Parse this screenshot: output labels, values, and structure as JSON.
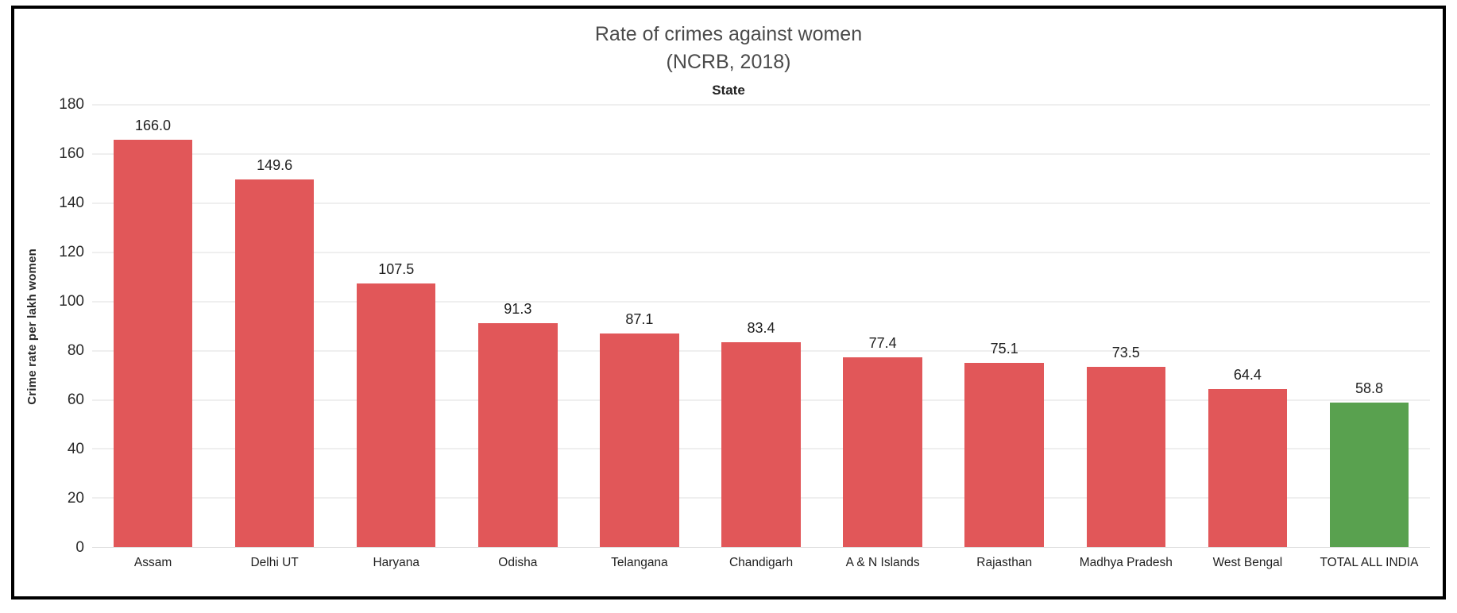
{
  "chart_data": {
    "type": "bar",
    "title": "Rate of crimes against women",
    "subtitle": "(NCRB, 2018)",
    "column_header": "State",
    "ylabel": "Crime rate per lakh women",
    "xlabel": "",
    "categories": [
      "Assam",
      "Delhi UT",
      "Haryana",
      "Odisha",
      "Telangana",
      "Chandigarh",
      "A & N Islands",
      "Rajasthan",
      "Madhya Pradesh",
      "West Bengal",
      "TOTAL ALL INDIA"
    ],
    "values": [
      166.0,
      149.6,
      107.5,
      91.3,
      87.1,
      83.4,
      77.4,
      75.1,
      73.5,
      64.4,
      58.8
    ],
    "value_labels": [
      "166.0",
      "149.6",
      "107.5",
      "91.3",
      "87.1",
      "83.4",
      "77.4",
      "75.1",
      "73.5",
      "64.4",
      "58.8"
    ],
    "ylim": [
      0,
      180
    ],
    "yticks": [
      0,
      20,
      40,
      60,
      80,
      100,
      120,
      140,
      160,
      180
    ],
    "grid": true,
    "legend_position": "none",
    "colors": {
      "bar_default": "#e15759",
      "bar_highlight": "#59a14f",
      "highlight_category": "TOTAL ALL INDIA",
      "highlight_index": 10,
      "gridline": "#efefef",
      "frame_border": "#000000",
      "title_text": "#4b4b4b",
      "label_text": "#1f1f1f"
    }
  }
}
